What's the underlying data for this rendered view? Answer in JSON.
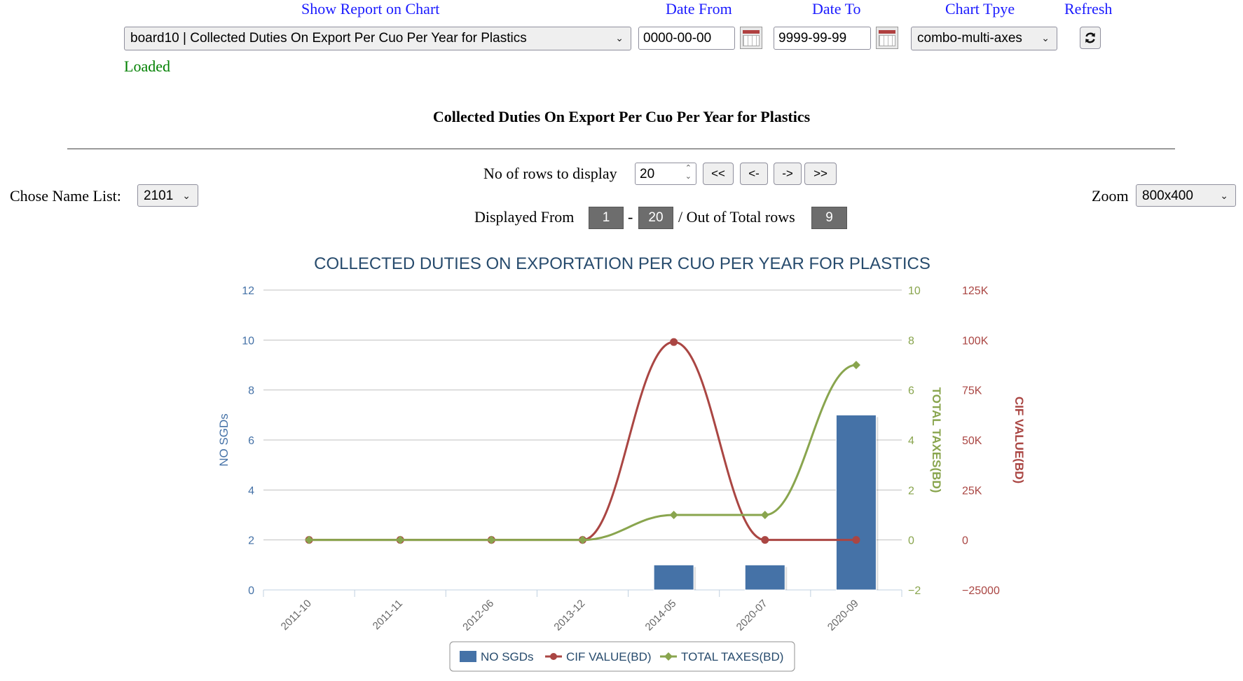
{
  "header": {
    "show_report_label": "Show Report on Chart",
    "date_from_label": "Date From",
    "date_to_label": "Date To",
    "chart_type_label": "Chart Tpye",
    "refresh_label": "Refresh"
  },
  "controls": {
    "report_select": "board10 | Collected Duties On Export Per Cuo Per Year for Plastics",
    "date_from": "0000-00-00",
    "date_to": "9999-99-99",
    "chart_type": "combo-multi-axes",
    "status": "Loaded"
  },
  "report_title": "Collected Duties On Export Per Cuo Per Year for Plastics",
  "paging": {
    "rows_label": "No of rows to display",
    "rows_value": "20",
    "first": "<<",
    "prev": "<-",
    "next": "->",
    "last": ">>",
    "displayed_from_label": "Displayed From",
    "from": "1",
    "dash": "-",
    "to": "20",
    "out_of_label": "/ Out of Total rows",
    "total": "9"
  },
  "name_list": {
    "label": "Chose Name List:",
    "value": "2101"
  },
  "zoom": {
    "label": "Zoom",
    "value": "800x400"
  },
  "colors": {
    "link_blue": "#1a1aff",
    "status_green": "#008000",
    "bar_blue": "#4572a7",
    "cif_red": "#aa4643",
    "tax_green": "#89a54e"
  },
  "chart_data": {
    "type": "bar",
    "title": "COLLECTED DUTIES ON EXPORTATION PER CUO PER YEAR FOR PLASTICS",
    "categories": [
      "2011-10",
      "2011-11",
      "2012-06",
      "2013-12",
      "2014-05",
      "2020-07",
      "2020-09"
    ],
    "series": [
      {
        "name": "NO SGDs",
        "type": "bar",
        "axis": "left",
        "values": [
          0,
          0,
          0,
          0,
          1,
          1,
          7
        ]
      },
      {
        "name": "CIF VALUE(BD)",
        "type": "line",
        "axis": "right2",
        "values": [
          0,
          0,
          0,
          0,
          99000,
          0,
          0
        ]
      },
      {
        "name": "TOTAL TAXES(BD)",
        "type": "line",
        "axis": "right1",
        "values": [
          0,
          0,
          0,
          0,
          1,
          1,
          7
        ]
      }
    ],
    "axes": {
      "left": {
        "label": "NO SGDs",
        "ticks": [
          "0",
          "2",
          "4",
          "6",
          "8",
          "10",
          "12"
        ],
        "range": [
          0,
          12
        ]
      },
      "right1": {
        "label": "TOTAL TAXES(BD)",
        "ticks": [
          "−2",
          "0",
          "2",
          "4",
          "6",
          "8",
          "10"
        ],
        "range": [
          -2,
          10
        ]
      },
      "right2": {
        "label": "CIF VALUE(BD)",
        "ticks": [
          "−25000",
          "0",
          "25K",
          "50K",
          "75K",
          "100K",
          "125K"
        ],
        "range": [
          -25000,
          125000
        ]
      }
    },
    "grid": true,
    "legend": "bottom-center"
  }
}
